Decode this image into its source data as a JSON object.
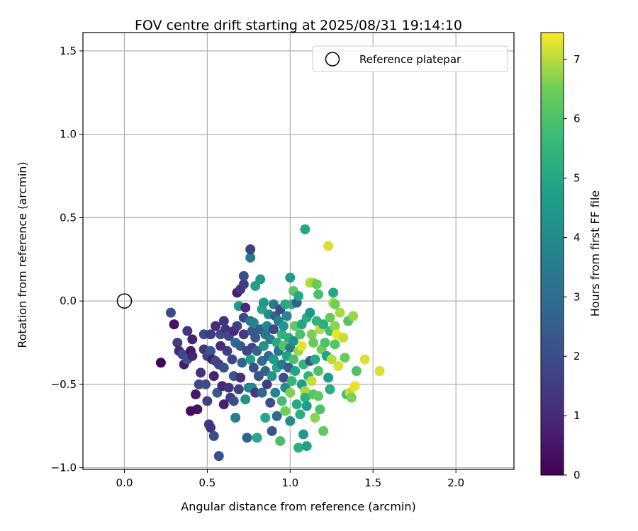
{
  "chart_data": {
    "type": "scatter",
    "title": "FOV centre drift starting at 2025/08/31 19:14:10",
    "xlabel": "Angular distance from reference (arcmin)",
    "ylabel": "Rotation from reference (arcmin)",
    "xlim": [
      -0.25,
      2.35
    ],
    "ylim": [
      -1.01,
      1.61
    ],
    "xticks": [
      0.0,
      0.5,
      1.0,
      1.5,
      2.0
    ],
    "xtick_labels": [
      "0.0",
      "0.5",
      "1.0",
      "1.5",
      "2.0"
    ],
    "yticks": [
      -1.0,
      -0.5,
      0.0,
      0.5,
      1.0,
      1.5
    ],
    "ytick_labels": [
      "−1.0",
      "−0.5",
      "0.0",
      "0.5",
      "1.0",
      "1.5"
    ],
    "grid": true,
    "legend": {
      "position": "top-right",
      "entries": [
        "Reference platepar"
      ]
    },
    "reference_point": {
      "x": 0.0,
      "y": 0.0,
      "label": "Reference platepar"
    },
    "colorbar": {
      "label": "Hours from first FF file",
      "colormap": "viridis",
      "range": [
        0,
        7.45
      ],
      "ticks": [
        0,
        1,
        2,
        3,
        4,
        5,
        6,
        7
      ],
      "tick_labels": [
        "0",
        "1",
        "2",
        "3",
        "4",
        "5",
        "6",
        "7"
      ]
    },
    "points": [
      {
        "x": 0.22,
        "y": -0.37,
        "c": 0.1
      },
      {
        "x": 0.28,
        "y": -0.07,
        "c": 1.9
      },
      {
        "x": 0.3,
        "y": -0.14,
        "c": 0.4
      },
      {
        "x": 0.32,
        "y": -0.25,
        "c": 1.5
      },
      {
        "x": 0.33,
        "y": -0.3,
        "c": 0.9
      },
      {
        "x": 0.35,
        "y": -0.32,
        "c": 1.8
      },
      {
        "x": 0.36,
        "y": -0.38,
        "c": 0.6
      },
      {
        "x": 0.38,
        "y": -0.18,
        "c": 1.3
      },
      {
        "x": 0.38,
        "y": -0.35,
        "c": 2.2
      },
      {
        "x": 0.4,
        "y": -0.3,
        "c": 0.5
      },
      {
        "x": 0.41,
        "y": -0.23,
        "c": 0.8
      },
      {
        "x": 0.41,
        "y": -0.33,
        "c": 0.8
      },
      {
        "x": 0.43,
        "y": -0.56,
        "c": 0.5
      },
      {
        "x": 0.44,
        "y": -0.65,
        "c": 0.4
      },
      {
        "x": 0.4,
        "y": -0.66,
        "c": 0.3
      },
      {
        "x": 0.45,
        "y": -0.5,
        "c": 1.8
      },
      {
        "x": 0.46,
        "y": -0.43,
        "c": 1.2
      },
      {
        "x": 0.48,
        "y": -0.2,
        "c": 1.9
      },
      {
        "x": 0.48,
        "y": -0.29,
        "c": 1.3
      },
      {
        "x": 0.49,
        "y": -0.5,
        "c": 2.0
      },
      {
        "x": 0.5,
        "y": -0.33,
        "c": 1.7
      },
      {
        "x": 0.5,
        "y": -0.6,
        "c": 1.6
      },
      {
        "x": 0.51,
        "y": -0.74,
        "c": 1.6
      },
      {
        "x": 0.52,
        "y": -0.76,
        "c": 1.2
      },
      {
        "x": 0.52,
        "y": -0.2,
        "c": 1.4
      },
      {
        "x": 0.52,
        "y": -0.3,
        "c": 2.3
      },
      {
        "x": 0.53,
        "y": -0.35,
        "c": 0.7
      },
      {
        "x": 0.54,
        "y": -0.45,
        "c": 0.8
      },
      {
        "x": 0.54,
        "y": -0.81,
        "c": 2.0
      },
      {
        "x": 0.55,
        "y": -0.15,
        "c": 1.1
      },
      {
        "x": 0.55,
        "y": -0.36,
        "c": 1.9
      },
      {
        "x": 0.56,
        "y": -0.55,
        "c": 2.4
      },
      {
        "x": 0.57,
        "y": -0.38,
        "c": 1.6
      },
      {
        "x": 0.57,
        "y": -0.93,
        "c": 2.1
      },
      {
        "x": 0.58,
        "y": -0.2,
        "c": 1.9
      },
      {
        "x": 0.58,
        "y": -0.27,
        "c": 1.0
      },
      {
        "x": 0.59,
        "y": -0.51,
        "c": 0.9
      },
      {
        "x": 0.6,
        "y": -0.12,
        "c": 1.2
      },
      {
        "x": 0.6,
        "y": -0.4,
        "c": 2.2
      },
      {
        "x": 0.6,
        "y": -0.62,
        "c": 0.7
      },
      {
        "x": 0.61,
        "y": -0.17,
        "c": 1.3
      },
      {
        "x": 0.62,
        "y": -0.3,
        "c": 1.5
      },
      {
        "x": 0.63,
        "y": -0.21,
        "c": 1.8
      },
      {
        "x": 0.63,
        "y": -0.52,
        "c": 1.3
      },
      {
        "x": 0.64,
        "y": -0.58,
        "c": 1.5
      },
      {
        "x": 0.65,
        "y": -0.35,
        "c": 1.8
      },
      {
        "x": 0.66,
        "y": -0.18,
        "c": 1.0
      },
      {
        "x": 0.66,
        "y": -0.45,
        "c": 2.3
      },
      {
        "x": 0.66,
        "y": -0.6,
        "c": 2.0
      },
      {
        "x": 0.67,
        "y": -0.7,
        "c": 3.5
      },
      {
        "x": 0.67,
        "y": -0.25,
        "c": 2.9
      },
      {
        "x": 0.68,
        "y": 0.05,
        "c": 0.7
      },
      {
        "x": 0.68,
        "y": -0.15,
        "c": 1.6
      },
      {
        "x": 0.69,
        "y": -0.03,
        "c": 4.6
      },
      {
        "x": 0.69,
        "y": -0.53,
        "c": 1.6
      },
      {
        "x": 0.7,
        "y": 0.07,
        "c": 1.3
      },
      {
        "x": 0.7,
        "y": -0.27,
        "c": 2.4
      },
      {
        "x": 0.7,
        "y": -0.46,
        "c": 1.1
      },
      {
        "x": 0.71,
        "y": -0.37,
        "c": 2.7
      },
      {
        "x": 0.72,
        "y": 0.1,
        "c": 1.5
      },
      {
        "x": 0.72,
        "y": -0.1,
        "c": 1.9
      },
      {
        "x": 0.72,
        "y": -0.2,
        "c": 1.4
      },
      {
        "x": 0.72,
        "y": 0.15,
        "c": 2.0
      },
      {
        "x": 0.73,
        "y": -0.04,
        "c": 1.0
      },
      {
        "x": 0.73,
        "y": -0.59,
        "c": 4.2
      },
      {
        "x": 0.74,
        "y": -0.3,
        "c": 1.8
      },
      {
        "x": 0.74,
        "y": -0.82,
        "c": 2.6
      },
      {
        "x": 0.75,
        "y": -0.52,
        "c": 3.6
      },
      {
        "x": 0.76,
        "y": -0.12,
        "c": 3.1
      },
      {
        "x": 0.76,
        "y": -0.35,
        "c": 4.7
      },
      {
        "x": 0.76,
        "y": 0.26,
        "c": 3.4
      },
      {
        "x": 0.76,
        "y": 0.31,
        "c": 1.6
      },
      {
        "x": 0.77,
        "y": -0.18,
        "c": 2.3
      },
      {
        "x": 0.77,
        "y": -0.28,
        "c": 1.7
      },
      {
        "x": 0.77,
        "y": -0.52,
        "c": 4.0
      },
      {
        "x": 0.78,
        "y": -0.13,
        "c": 3.8
      },
      {
        "x": 0.78,
        "y": -0.4,
        "c": 2.1
      },
      {
        "x": 0.79,
        "y": -0.22,
        "c": 2.3
      },
      {
        "x": 0.79,
        "y": 0.09,
        "c": 4.8
      },
      {
        "x": 0.79,
        "y": -0.55,
        "c": 1.4
      },
      {
        "x": 0.8,
        "y": -0.82,
        "c": 5.0
      },
      {
        "x": 0.8,
        "y": -0.3,
        "c": 2.6
      },
      {
        "x": 0.81,
        "y": -0.45,
        "c": 2.2
      },
      {
        "x": 0.82,
        "y": 0.13,
        "c": 4.4
      },
      {
        "x": 0.82,
        "y": -0.17,
        "c": 2.5
      },
      {
        "x": 0.83,
        "y": -0.36,
        "c": 3.0
      },
      {
        "x": 0.83,
        "y": -0.05,
        "c": 4.9
      },
      {
        "x": 0.83,
        "y": -0.55,
        "c": 2.8
      },
      {
        "x": 0.84,
        "y": -0.27,
        "c": 4.3
      },
      {
        "x": 0.84,
        "y": -0.01,
        "c": 4.5
      },
      {
        "x": 0.85,
        "y": -0.2,
        "c": 3.2
      },
      {
        "x": 0.85,
        "y": -0.42,
        "c": 2.7
      },
      {
        "x": 0.85,
        "y": -0.7,
        "c": 5.0
      },
      {
        "x": 0.86,
        "y": -0.15,
        "c": 3.9
      },
      {
        "x": 0.86,
        "y": -0.5,
        "c": 1.5
      },
      {
        "x": 0.87,
        "y": -0.33,
        "c": 2.9
      },
      {
        "x": 0.87,
        "y": -0.08,
        "c": 4.1
      },
      {
        "x": 0.88,
        "y": -0.23,
        "c": 3.6
      },
      {
        "x": 0.88,
        "y": -0.61,
        "c": 2.0
      },
      {
        "x": 0.89,
        "y": -0.45,
        "c": 4.4
      },
      {
        "x": 0.89,
        "y": -0.78,
        "c": 2.2
      },
      {
        "x": 0.9,
        "y": -0.17,
        "c": 1.9
      },
      {
        "x": 0.9,
        "y": -0.35,
        "c": 4.6
      },
      {
        "x": 0.9,
        "y": -0.02,
        "c": 3.4
      },
      {
        "x": 0.91,
        "y": -0.09,
        "c": 2.6
      },
      {
        "x": 0.91,
        "y": -0.55,
        "c": 3.8
      },
      {
        "x": 0.92,
        "y": -0.25,
        "c": 5.0
      },
      {
        "x": 0.92,
        "y": -0.4,
        "c": 4.9
      },
      {
        "x": 0.92,
        "y": -0.69,
        "c": 2.9
      },
      {
        "x": 0.93,
        "y": -0.3,
        "c": 3.1
      },
      {
        "x": 0.93,
        "y": -0.12,
        "c": 3.7
      },
      {
        "x": 0.94,
        "y": -0.84,
        "c": 5.9
      },
      {
        "x": 0.94,
        "y": -0.05,
        "c": 1.9
      },
      {
        "x": 0.95,
        "y": -0.38,
        "c": 3.5
      },
      {
        "x": 0.95,
        "y": -0.2,
        "c": 5.5
      },
      {
        "x": 0.95,
        "y": -0.6,
        "c": 5.8
      },
      {
        "x": 0.96,
        "y": -0.27,
        "c": 6.1
      },
      {
        "x": 0.96,
        "y": -0.15,
        "c": 4.4
      },
      {
        "x": 0.96,
        "y": -0.46,
        "c": 2.0
      },
      {
        "x": 0.97,
        "y": -0.52,
        "c": 4.0
      },
      {
        "x": 0.97,
        "y": -0.02,
        "c": 5.0
      },
      {
        "x": 0.97,
        "y": -0.66,
        "c": 6.5
      },
      {
        "x": 0.98,
        "y": -0.33,
        "c": 4.8
      },
      {
        "x": 0.98,
        "y": -0.09,
        "c": 3.9
      },
      {
        "x": 0.99,
        "y": -0.4,
        "c": 2.4
      },
      {
        "x": 0.99,
        "y": -0.22,
        "c": 5.3
      },
      {
        "x": 1.0,
        "y": 0.14,
        "c": 4.5
      },
      {
        "x": 1.0,
        "y": -0.72,
        "c": 4.1
      },
      {
        "x": 1.0,
        "y": -0.55,
        "c": 6.6
      },
      {
        "x": 1.0,
        "y": -0.28,
        "c": 3.4
      },
      {
        "x": 1.01,
        "y": -0.48,
        "c": 5.6
      },
      {
        "x": 1.01,
        "y": -0.02,
        "c": 5.3
      },
      {
        "x": 1.02,
        "y": 0.06,
        "c": 6.2
      },
      {
        "x": 1.02,
        "y": -0.35,
        "c": 5.9
      },
      {
        "x": 1.02,
        "y": -0.24,
        "c": 4.3
      },
      {
        "x": 1.03,
        "y": -0.15,
        "c": 6.3
      },
      {
        "x": 1.03,
        "y": -0.42,
        "c": 4.9
      },
      {
        "x": 1.04,
        "y": -0.01,
        "c": 2.6
      },
      {
        "x": 1.04,
        "y": -0.62,
        "c": 5.1
      },
      {
        "x": 1.05,
        "y": 0.03,
        "c": 5.0
      },
      {
        "x": 1.05,
        "y": -0.3,
        "c": 6.8
      },
      {
        "x": 1.05,
        "y": -0.88,
        "c": 5.3
      },
      {
        "x": 1.06,
        "y": -0.68,
        "c": 5.2
      },
      {
        "x": 1.06,
        "y": -0.2,
        "c": 6.0
      },
      {
        "x": 1.07,
        "y": -0.5,
        "c": 4.7
      },
      {
        "x": 1.07,
        "y": -0.14,
        "c": 4.9
      },
      {
        "x": 1.07,
        "y": -0.27,
        "c": 7.3
      },
      {
        "x": 1.08,
        "y": -0.38,
        "c": 5.5
      },
      {
        "x": 1.08,
        "y": -0.8,
        "c": 4.5
      },
      {
        "x": 1.09,
        "y": 0.43,
        "c": 5.0
      },
      {
        "x": 1.09,
        "y": -0.54,
        "c": 6.9
      },
      {
        "x": 1.09,
        "y": -0.58,
        "c": 5.4
      },
      {
        "x": 1.1,
        "y": -0.1,
        "c": 5.2
      },
      {
        "x": 1.1,
        "y": -0.63,
        "c": 4.6
      },
      {
        "x": 1.1,
        "y": -0.87,
        "c": 4.8
      },
      {
        "x": 1.11,
        "y": -0.45,
        "c": 5.4
      },
      {
        "x": 1.12,
        "y": 0.11,
        "c": 7.0
      },
      {
        "x": 1.12,
        "y": -0.36,
        "c": 2.3
      },
      {
        "x": 1.12,
        "y": -0.07,
        "c": 4.4
      },
      {
        "x": 1.13,
        "y": -0.48,
        "c": 7.1
      },
      {
        "x": 1.13,
        "y": -0.2,
        "c": 6.6
      },
      {
        "x": 1.14,
        "y": 0.11,
        "c": 6.9
      },
      {
        "x": 1.14,
        "y": -0.25,
        "c": 6.4
      },
      {
        "x": 1.14,
        "y": -0.56,
        "c": 6.2
      },
      {
        "x": 1.15,
        "y": -0.7,
        "c": 6.7
      },
      {
        "x": 1.15,
        "y": -0.35,
        "c": 5.1
      },
      {
        "x": 1.16,
        "y": 0.1,
        "c": 6.4
      },
      {
        "x": 1.16,
        "y": -0.12,
        "c": 5.4
      },
      {
        "x": 1.17,
        "y": 0.04,
        "c": 5.9
      },
      {
        "x": 1.17,
        "y": -0.57,
        "c": 6.3
      },
      {
        "x": 1.17,
        "y": -0.42,
        "c": 6.0
      },
      {
        "x": 1.18,
        "y": -0.65,
        "c": 6.0
      },
      {
        "x": 1.18,
        "y": -0.17,
        "c": 7.0
      },
      {
        "x": 1.19,
        "y": -0.29,
        "c": 6.5
      },
      {
        "x": 1.2,
        "y": -0.78,
        "c": 6.3
      },
      {
        "x": 1.2,
        "y": -0.14,
        "c": 5.3
      },
      {
        "x": 1.21,
        "y": -0.25,
        "c": 6.0
      },
      {
        "x": 1.22,
        "y": -0.33,
        "c": 4.9
      },
      {
        "x": 1.23,
        "y": 0.33,
        "c": 7.2
      },
      {
        "x": 1.23,
        "y": -0.46,
        "c": 4.6
      },
      {
        "x": 1.24,
        "y": -0.1,
        "c": 6.4
      },
      {
        "x": 1.24,
        "y": -0.18,
        "c": 5.8
      },
      {
        "x": 1.24,
        "y": -0.53,
        "c": 5.2
      },
      {
        "x": 1.25,
        "y": -0.35,
        "c": 7.0
      },
      {
        "x": 1.26,
        "y": -0.01,
        "c": 7.0
      },
      {
        "x": 1.26,
        "y": 0.05,
        "c": 5.0
      },
      {
        "x": 1.27,
        "y": -0.15,
        "c": 6.7
      },
      {
        "x": 1.27,
        "y": -0.26,
        "c": 6.1
      },
      {
        "x": 1.27,
        "y": -0.02,
        "c": 6.5
      },
      {
        "x": 1.28,
        "y": -0.2,
        "c": 7.3
      },
      {
        "x": 1.29,
        "y": -0.39,
        "c": 7.2
      },
      {
        "x": 1.3,
        "y": -0.07,
        "c": 6.9
      },
      {
        "x": 1.32,
        "y": -0.22,
        "c": 7.1
      },
      {
        "x": 1.33,
        "y": -0.34,
        "c": 6.4
      },
      {
        "x": 1.34,
        "y": -0.56,
        "c": 5.9
      },
      {
        "x": 1.35,
        "y": -0.12,
        "c": 6.1
      },
      {
        "x": 1.36,
        "y": -0.55,
        "c": 7.1
      },
      {
        "x": 1.37,
        "y": -0.58,
        "c": 6.6
      },
      {
        "x": 1.38,
        "y": -0.09,
        "c": 6.8
      },
      {
        "x": 1.39,
        "y": -0.51,
        "c": 7.3
      },
      {
        "x": 1.4,
        "y": -0.42,
        "c": 6.0
      },
      {
        "x": 1.45,
        "y": -0.35,
        "c": 7.2
      },
      {
        "x": 1.54,
        "y": -0.42,
        "c": 7.2
      }
    ]
  }
}
